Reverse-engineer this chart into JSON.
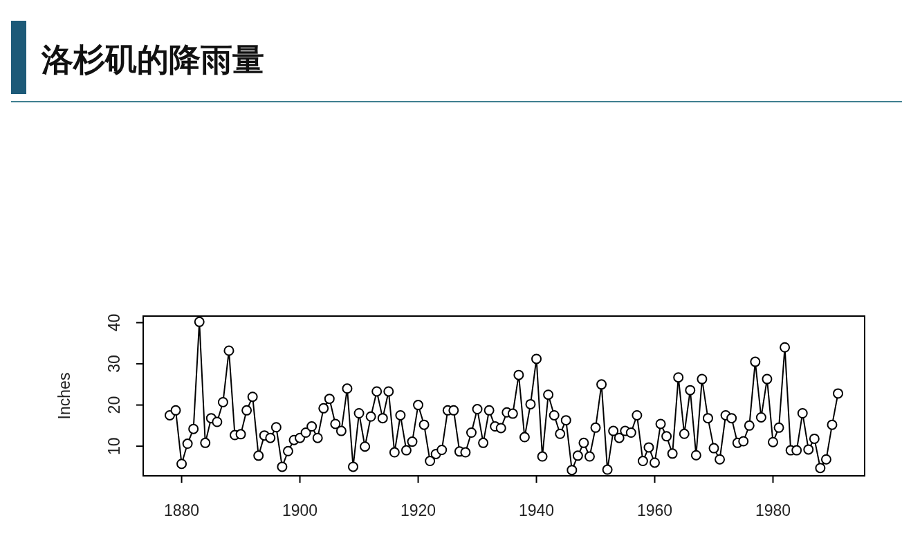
{
  "chart_data": {
    "type": "line",
    "title": "洛杉矶的降雨量",
    "ylabel": "Inches",
    "marker": "circle",
    "x": [
      1878,
      1879,
      1880,
      1881,
      1882,
      1883,
      1884,
      1885,
      1886,
      1887,
      1888,
      1889,
      1890,
      1891,
      1892,
      1893,
      1894,
      1895,
      1896,
      1897,
      1898,
      1899,
      1900,
      1901,
      1902,
      1903,
      1904,
      1905,
      1906,
      1907,
      1908,
      1909,
      1910,
      1911,
      1912,
      1913,
      1914,
      1915,
      1916,
      1917,
      1918,
      1919,
      1920,
      1921,
      1922,
      1923,
      1924,
      1925,
      1926,
      1927,
      1928,
      1929,
      1930,
      1931,
      1932,
      1933,
      1934,
      1935,
      1936,
      1937,
      1938,
      1939,
      1940,
      1941,
      1942,
      1943,
      1944,
      1945,
      1946,
      1947,
      1948,
      1949,
      1950,
      1951,
      1952,
      1953,
      1954,
      1955,
      1956,
      1957,
      1958,
      1959,
      1960,
      1961,
      1962,
      1963,
      1964,
      1965,
      1966,
      1967,
      1968,
      1969,
      1970,
      1971,
      1972,
      1973,
      1974,
      1975,
      1976,
      1977,
      1978,
      1979,
      1980,
      1981,
      1982,
      1983,
      1984,
      1985,
      1986,
      1987,
      1988,
      1989,
      1990,
      1991
    ],
    "values": [
      17.5,
      18.7,
      5.7,
      10.6,
      14.2,
      40.2,
      10.8,
      16.8,
      15.9,
      20.7,
      33.2,
      12.7,
      12.9,
      18.7,
      22.0,
      7.7,
      12.6,
      12.0,
      14.6,
      5.0,
      8.8,
      11.5,
      12.0,
      13.3,
      14.8,
      12.0,
      19.2,
      21.5,
      15.4,
      13.7,
      24.0,
      5.0,
      18.0,
      9.9,
      17.2,
      23.3,
      16.8,
      23.3,
      8.5,
      17.5,
      9.0,
      11.1,
      20.0,
      15.2,
      6.4,
      8.1,
      9.1,
      18.7,
      18.7,
      8.7,
      8.5,
      13.3,
      19.0,
      10.8,
      18.7,
      14.8,
      14.4,
      18.2,
      17.9,
      27.3,
      12.2,
      20.2,
      31.2,
      7.5,
      22.5,
      17.5,
      13.0,
      16.3,
      4.2,
      7.7,
      10.8,
      7.5,
      14.5,
      25.0,
      4.3,
      13.7,
      12.0,
      13.7,
      13.3,
      17.5,
      6.4,
      9.7,
      6.0,
      15.4,
      12.4,
      8.2,
      26.7,
      13.0,
      23.6,
      7.8,
      26.3,
      16.8,
      9.5,
      6.8,
      17.5,
      16.8,
      10.8,
      11.2,
      15.0,
      30.5,
      17.0,
      26.3,
      11.0,
      14.5,
      34.0,
      9.0,
      9.0,
      18.0,
      9.2,
      11.8,
      4.7,
      6.8,
      15.2,
      22.8
    ],
    "xlim": [
      1873.5,
      1995.5
    ],
    "ylim": [
      2.8,
      41.6
    ],
    "xticks": [
      1880,
      1900,
      1920,
      1940,
      1960,
      1980
    ],
    "yticks": [
      10,
      20,
      30,
      40
    ]
  }
}
